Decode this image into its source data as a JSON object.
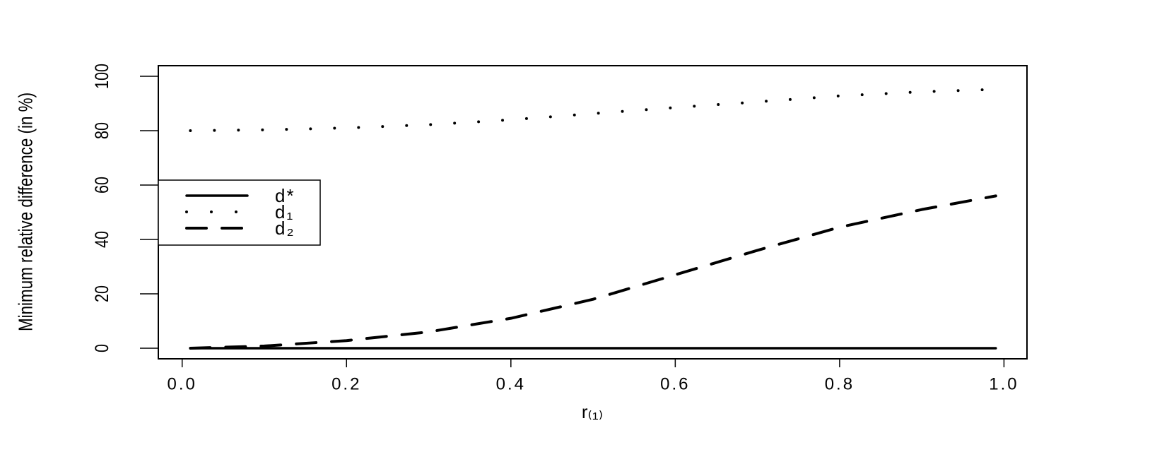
{
  "chart_data": {
    "type": "line",
    "x_label": "r₍₁₎",
    "y_label": "Minimum relative difference (in %)",
    "x": [
      0.01,
      0.1,
      0.2,
      0.3,
      0.4,
      0.5,
      0.6,
      0.7,
      0.8,
      0.9,
      0.99
    ],
    "series": [
      {
        "name": "d*",
        "color": "#000000",
        "style": "solid",
        "values": [
          0,
          0,
          0,
          0,
          0,
          0,
          0,
          0,
          0,
          0,
          0
        ]
      },
      {
        "name": "d₁",
        "color": "#000000",
        "style": "dotted",
        "values": [
          80,
          80.3,
          81,
          82.2,
          84,
          86.3,
          88.5,
          90.6,
          92.8,
          94.3,
          95.2
        ]
      },
      {
        "name": "d₂",
        "color": "#000000",
        "style": "dashed",
        "values": [
          0,
          0.8,
          2.8,
          6,
          11,
          18,
          27,
          36,
          44.5,
          51,
          56
        ]
      }
    ],
    "xlim": [
      -0.029,
      1.028
    ],
    "ylim": [
      -3.9,
      103.9
    ],
    "xticks": [
      {
        "value": 0,
        "label": "0.0"
      },
      0.2,
      0.4,
      0.6,
      0.8,
      {
        "value": 1,
        "label": "1.0"
      }
    ],
    "yticks": [
      0,
      20,
      40,
      60,
      80,
      100
    ],
    "legend": "left"
  }
}
